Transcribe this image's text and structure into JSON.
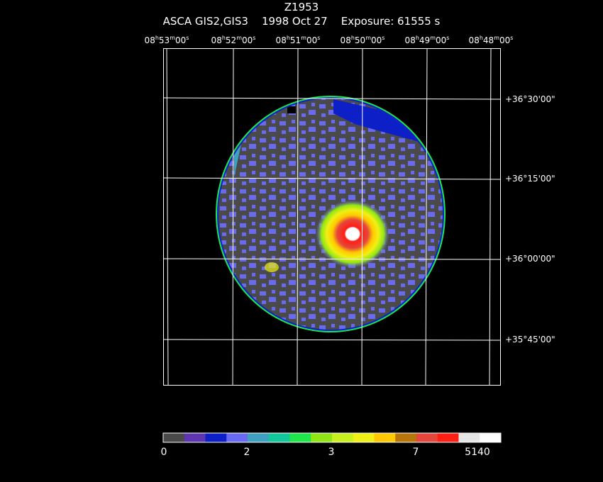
{
  "header": {
    "object": "Z1953",
    "subtitle_mission": "ASCA GIS2,GIS3",
    "subtitle_date": "1998 Oct 27",
    "subtitle_exposure": "Exposure: 61555 s"
  },
  "ra_labels": [
    "08h53m00s",
    "08h52m00s",
    "08h51m00s",
    "08h50m00s",
    "08h49m00s",
    "08h48m00s"
  ],
  "dec_labels": [
    "+36°30'00\"",
    "+36°15'00\"",
    "+36°00'00\"",
    "+35°45'00\""
  ],
  "colorbar": {
    "colors": [
      "#4a4a4a",
      "#5e35b1",
      "#0d1fc7",
      "#6a6af0",
      "#3fa0c0",
      "#14c79b",
      "#1ee64b",
      "#8fe614",
      "#c8f01e",
      "#f0f014",
      "#ffc800",
      "#b8760a",
      "#e6463c",
      "#ff1e14",
      "#e6e6e6",
      "#ffffff"
    ],
    "tick_labels": [
      "0",
      "2",
      "3",
      "7",
      "5140"
    ]
  }
}
